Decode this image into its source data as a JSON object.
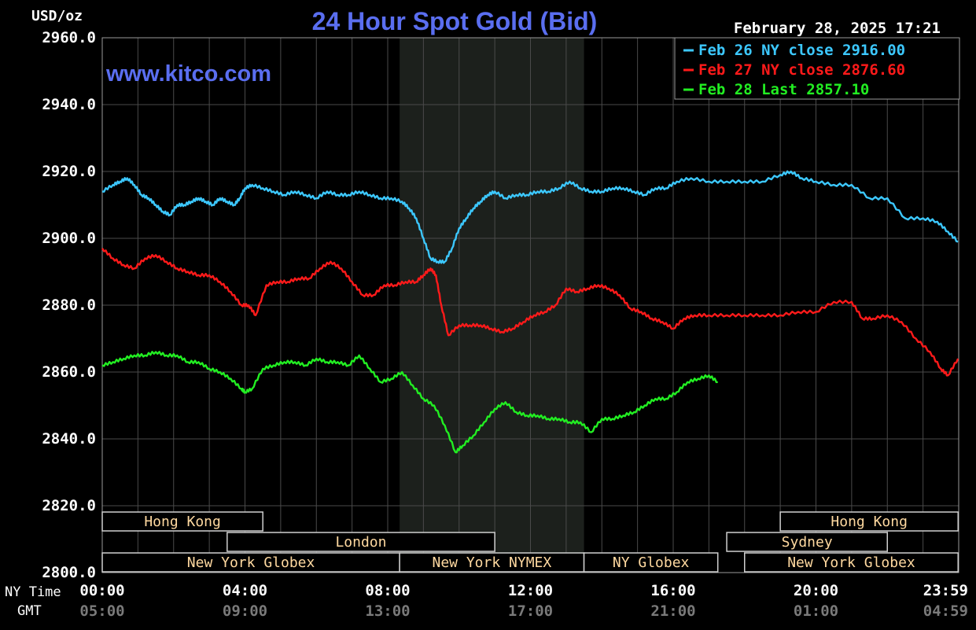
{
  "header": {
    "unit_label": "USD/oz",
    "title": "24 Hour Spot Gold (Bid)",
    "watermark": "www.kitco.com",
    "timestamp": "February 28, 2025 17:21"
  },
  "colors": {
    "background": "#000000",
    "grid": "#4a4a4a",
    "title": "#5a6ef0",
    "watermark": "#5a6ef0",
    "text": "#ffffff",
    "gmt_text": "#7a7a7a",
    "market_box_text": "#ffd9a0",
    "feb26": "#3cc8ff",
    "feb27": "#ff1a1a",
    "feb28": "#22ee22",
    "nymex_shade": "#1c201c"
  },
  "markets": {
    "row1": [
      {
        "label": "Hong Kong",
        "start": "00:00",
        "end": "04:30"
      },
      {
        "label": "Hong Kong",
        "start": "19:00",
        "end": "23:59"
      }
    ],
    "row2": [
      {
        "label": "London",
        "start": "03:30",
        "end": "11:00"
      },
      {
        "label": "Sydney",
        "start": "17:30",
        "end": "22:00"
      }
    ],
    "row3": [
      {
        "label": "New York Globex",
        "start": "00:00",
        "end": "08:20"
      },
      {
        "label": "New York NYMEX",
        "start": "08:20",
        "end": "13:30"
      },
      {
        "label": "NY Globex",
        "start": "13:30",
        "end": "17:15"
      },
      {
        "label": "New York Globex",
        "start": "18:00",
        "end": "23:59"
      }
    ]
  },
  "row_labels": {
    "ny": "NY Time",
    "gmt": "GMT"
  },
  "chart_data": {
    "type": "line",
    "title": "24 Hour Spot Gold (Bid)",
    "ylabel": "USD/oz",
    "ylim": [
      2800,
      2960
    ],
    "y_ticks": [
      "2960.0",
      "2940.0",
      "2920.0",
      "2900.0",
      "2880.0",
      "2860.0",
      "2840.0",
      "2820.0",
      "2800.0"
    ],
    "x_range_hours": [
      0,
      24
    ],
    "x_ticks_ny": [
      "00:00",
      "04:00",
      "08:00",
      "12:00",
      "16:00",
      "20:00",
      "23:59"
    ],
    "x_ticks_gmt": [
      "05:00",
      "09:00",
      "13:00",
      "17:00",
      "21:00",
      "01:00",
      "04:59"
    ],
    "shaded_period": [
      "08:20",
      "13:30"
    ],
    "grid": true,
    "legend_position": "top-right",
    "series": [
      {
        "name": "Feb 26 NY close 2916.00",
        "color_key": "feb26",
        "x": [
          0,
          0.3,
          0.5,
          0.7,
          0.9,
          1.1,
          1.3,
          1.5,
          1.7,
          1.9,
          2.1,
          2.3,
          2.5,
          2.7,
          2.9,
          3.1,
          3.3,
          3.5,
          3.7,
          3.85,
          4.0,
          4.2,
          4.5,
          4.8,
          5.1,
          5.4,
          5.7,
          6.0,
          6.3,
          6.6,
          6.9,
          7.2,
          7.5,
          7.8,
          8.1,
          8.4,
          8.6,
          8.8,
          9.0,
          9.2,
          9.4,
          9.6,
          9.8,
          10.0,
          10.2,
          10.4,
          10.6,
          10.8,
          11.0,
          11.3,
          11.6,
          11.9,
          12.2,
          12.5,
          12.8,
          13.1,
          13.4,
          13.7,
          14.0,
          14.3,
          14.6,
          14.9,
          15.2,
          15.5,
          15.8,
          16.1,
          16.5,
          17.0,
          17.5,
          18.0,
          18.5,
          19.0,
          19.3,
          19.6,
          20.0,
          20.5,
          21.0,
          21.5,
          22.0,
          22.5,
          23.0,
          23.4,
          23.7,
          23.98
        ],
        "values": [
          2914,
          2916,
          2917,
          2918,
          2916,
          2913,
          2912,
          2910,
          2908,
          2907,
          2910,
          2910,
          2911,
          2912,
          2911,
          2910,
          2912,
          2911,
          2910,
          2912,
          2915,
          2916,
          2915,
          2914,
          2913,
          2914,
          2913,
          2912,
          2914,
          2913,
          2913,
          2914,
          2913,
          2912,
          2912,
          2911,
          2909,
          2906,
          2900,
          2894,
          2893,
          2893,
          2897,
          2903,
          2906,
          2909,
          2911,
          2913,
          2914,
          2912,
          2913,
          2913,
          2914,
          2914,
          2915,
          2917,
          2915,
          2914,
          2914,
          2915,
          2915,
          2914,
          2913,
          2915,
          2915,
          2917,
          2918,
          2917,
          2917,
          2917,
          2917,
          2919,
          2920,
          2918,
          2917,
          2916,
          2916,
          2912,
          2912,
          2906,
          2906,
          2905,
          2902,
          2899
        ]
      },
      {
        "name": "Feb 27 NY close 2876.60",
        "color_key": "feb27",
        "x": [
          0,
          0.3,
          0.6,
          0.9,
          1.2,
          1.5,
          1.8,
          2.1,
          2.4,
          2.7,
          3.0,
          3.3,
          3.6,
          3.9,
          4.1,
          4.3,
          4.6,
          4.9,
          5.2,
          5.5,
          5.8,
          6.1,
          6.4,
          6.7,
          7.0,
          7.3,
          7.6,
          7.9,
          8.2,
          8.5,
          8.8,
          9.0,
          9.2,
          9.35,
          9.5,
          9.7,
          10.0,
          10.3,
          10.6,
          10.9,
          11.2,
          11.5,
          11.8,
          12.1,
          12.4,
          12.7,
          13.0,
          13.3,
          13.6,
          13.9,
          14.2,
          14.5,
          14.8,
          15.1,
          15.4,
          15.7,
          16.0,
          16.3,
          16.6,
          17.0,
          17.5,
          18.0,
          18.5,
          19.0,
          19.5,
          20.0,
          20.5,
          21.0,
          21.3,
          21.6,
          22.0,
          22.4,
          22.8,
          23.2,
          23.5,
          23.7,
          23.98
        ],
        "values": [
          2897,
          2894,
          2892,
          2891,
          2894,
          2895,
          2893,
          2891,
          2890,
          2889,
          2889,
          2887,
          2884,
          2880,
          2880,
          2877,
          2886,
          2887,
          2887,
          2888,
          2888,
          2891,
          2893,
          2891,
          2887,
          2883,
          2883,
          2886,
          2886,
          2887,
          2887,
          2889,
          2891,
          2889,
          2880,
          2871,
          2874,
          2874,
          2874,
          2873,
          2872,
          2873,
          2875,
          2877,
          2878,
          2880,
          2885,
          2884,
          2885,
          2886,
          2885,
          2883,
          2879,
          2878,
          2876,
          2875,
          2873,
          2876,
          2877,
          2877,
          2877,
          2877,
          2877,
          2877,
          2878,
          2878,
          2881,
          2881,
          2876,
          2876,
          2877,
          2875,
          2870,
          2866,
          2861,
          2859,
          2864
        ]
      },
      {
        "name": "Feb 28 Last 2857.10",
        "color_key": "feb28",
        "x": [
          0,
          0.3,
          0.6,
          0.9,
          1.2,
          1.5,
          1.8,
          2.1,
          2.4,
          2.7,
          3.0,
          3.3,
          3.6,
          3.9,
          4.0,
          4.2,
          4.5,
          4.8,
          5.1,
          5.4,
          5.7,
          6.0,
          6.3,
          6.6,
          6.9,
          7.2,
          7.5,
          7.8,
          8.1,
          8.4,
          8.7,
          9.0,
          9.3,
          9.6,
          9.9,
          10.1,
          10.4,
          10.7,
          11.0,
          11.3,
          11.6,
          11.9,
          12.2,
          12.5,
          12.8,
          13.1,
          13.4,
          13.7,
          14.0,
          14.3,
          14.6,
          14.9,
          15.2,
          15.5,
          15.8,
          16.1,
          16.4,
          16.7,
          17.0,
          17.25
        ],
        "values": [
          2862,
          2863,
          2864,
          2865,
          2865,
          2866,
          2865,
          2865,
          2863,
          2863,
          2861,
          2860,
          2858,
          2855,
          2854,
          2855,
          2861,
          2862,
          2863,
          2863,
          2862,
          2864,
          2863,
          2863,
          2862,
          2865,
          2861,
          2857,
          2858,
          2860,
          2856,
          2852,
          2850,
          2844,
          2836,
          2838,
          2841,
          2845,
          2849,
          2851,
          2848,
          2847,
          2847,
          2846,
          2846,
          2845,
          2845,
          2842,
          2846,
          2846,
          2847,
          2848,
          2850,
          2852,
          2852,
          2854,
          2857,
          2858,
          2859,
          2857
        ]
      }
    ]
  }
}
